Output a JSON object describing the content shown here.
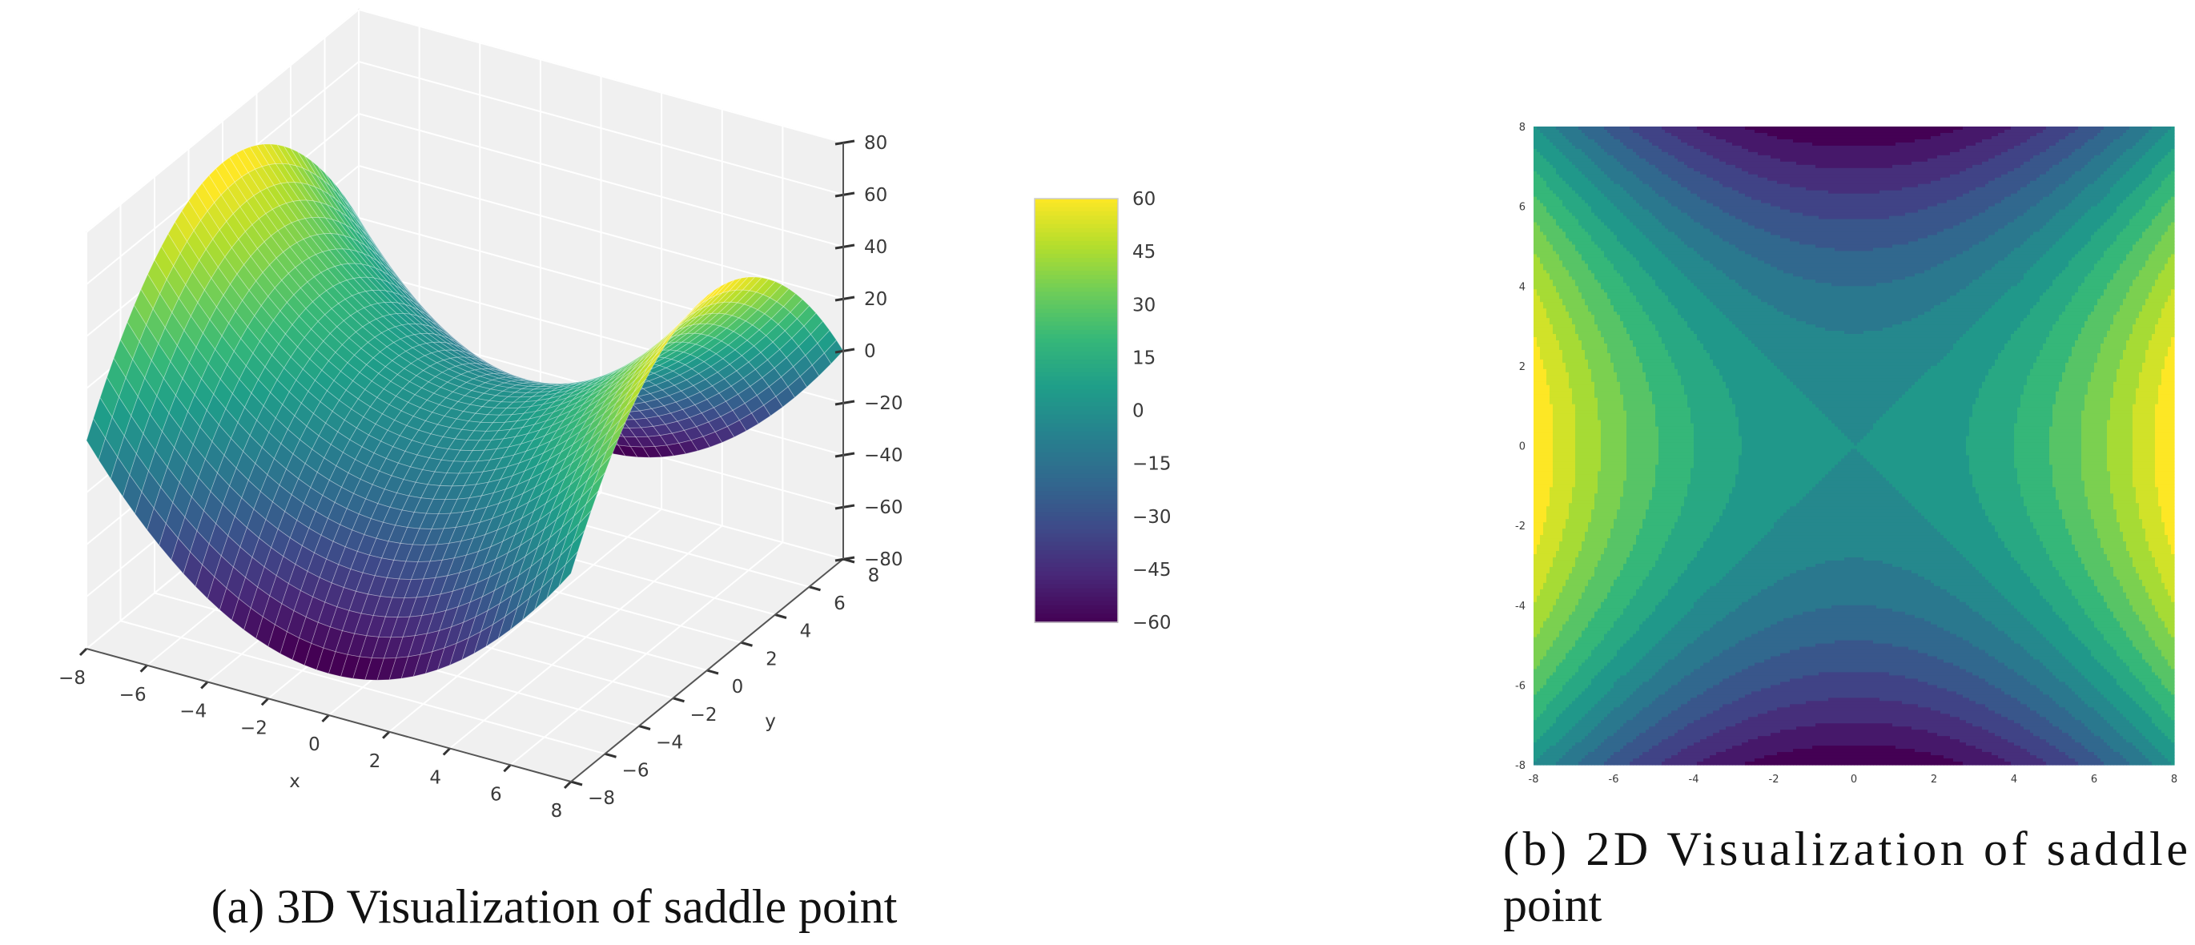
{
  "chart_data": [
    {
      "type": "surface3d",
      "function": "z = x^2 - y^2",
      "caption": "(a) 3D Visualization of saddle point",
      "xlabel": "x",
      "ylabel": "y",
      "zlabel": "",
      "xlim": [
        -8,
        8
      ],
      "ylim": [
        -8,
        8
      ],
      "zlim": [
        -80,
        80
      ],
      "x_ticks": [
        "−8",
        "−6",
        "−4",
        "−2",
        "0",
        "2",
        "4",
        "6",
        "8"
      ],
      "y_ticks": [
        "−8",
        "−6",
        "−4",
        "−2",
        "0",
        "2",
        "4",
        "6",
        "8"
      ],
      "z_ticks": [
        "−80",
        "−60",
        "−40",
        "−20",
        "0",
        "20",
        "40",
        "60",
        "80"
      ],
      "colormap": "viridis",
      "colorbar": {
        "range": [
          -60,
          60
        ],
        "ticks": [
          "60",
          "45",
          "30",
          "15",
          "0",
          "−15",
          "−30",
          "−45",
          "−60"
        ]
      },
      "grid": true
    },
    {
      "type": "contourf",
      "function": "z = x^2 - y^2",
      "caption_line1": "(b) 2D Visualization of saddle",
      "caption_line2": "point",
      "xlim": [
        -8,
        8
      ],
      "ylim": [
        -8,
        8
      ],
      "x_ticks": [
        "-8",
        "-6",
        "-4",
        "-2",
        "0",
        "2",
        "4",
        "6",
        "8"
      ],
      "y_ticks": [
        "8",
        "6",
        "4",
        "2",
        "0",
        "-2",
        "-4",
        "-6",
        "-8"
      ],
      "levels": [
        -64,
        -56,
        -48,
        -40,
        -32,
        -24,
        -16,
        -8,
        0,
        8,
        16,
        24,
        32,
        40,
        48,
        56,
        64
      ],
      "colormap": "viridis"
    }
  ]
}
